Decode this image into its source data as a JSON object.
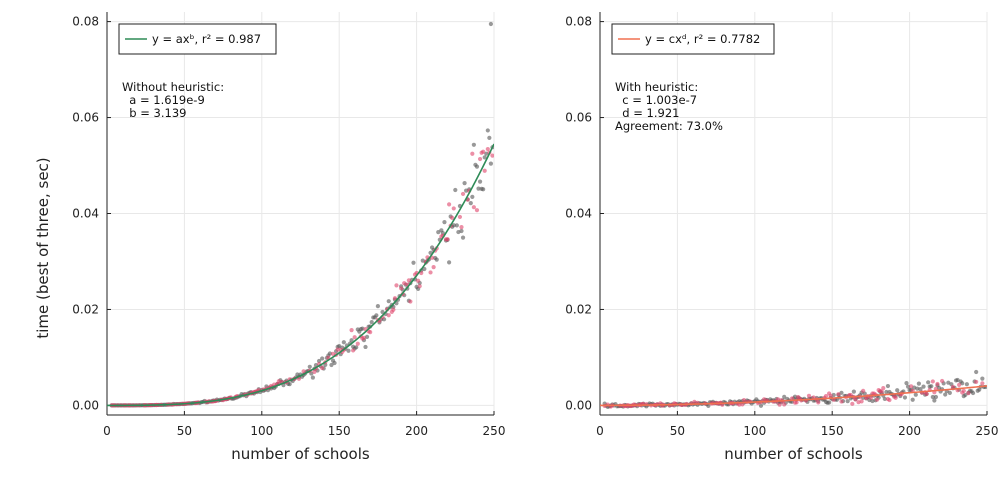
{
  "ylabel": "time (best of three, sec)",
  "chart_data": [
    {
      "type": "scatter",
      "xlabel": "number of schools",
      "xlim": [
        0,
        250
      ],
      "ylim": [
        -0.002,
        0.082
      ],
      "xticks": [
        "0",
        "50",
        "100",
        "150",
        "200",
        "250"
      ],
      "xtick_values": [
        0,
        50,
        100,
        150,
        200,
        250
      ],
      "yticks": [
        "0.00",
        "0.02",
        "0.04",
        "0.06",
        "0.08"
      ],
      "ytick_values": [
        0,
        0.02,
        0.04,
        0.06,
        0.08
      ],
      "grid": true,
      "legend": {
        "position": "top-left",
        "label": "y = axᵇ, r² = 0.987",
        "color": "#2e8b57"
      },
      "annotation": [
        "Without heuristic:",
        "  a = 1.619e-9",
        "  b = 3.139"
      ],
      "fit": {
        "form": "power",
        "coef": 1.619e-09,
        "exp": 3.139,
        "color": "#2e8b57"
      },
      "series": [
        {
          "color": "#555555",
          "noise": 0.09,
          "seed": 11,
          "points_per_x": 1
        },
        {
          "color": "#e0456a",
          "noise": 0.07,
          "seed": 23,
          "points_per_x": 0.55
        }
      ],
      "outliers": [
        [
          248,
          0.0795
        ]
      ]
    },
    {
      "type": "scatter",
      "xlabel": "number of schools",
      "xlim": [
        0,
        250
      ],
      "ylim": [
        -0.002,
        0.082
      ],
      "xticks": [
        "0",
        "50",
        "100",
        "150",
        "200",
        "250"
      ],
      "xtick_values": [
        0,
        50,
        100,
        150,
        200,
        250
      ],
      "yticks": [
        "0.00",
        "0.02",
        "0.04",
        "0.06",
        "0.08"
      ],
      "ytick_values": [
        0,
        0.02,
        0.04,
        0.06,
        0.08
      ],
      "grid": true,
      "legend": {
        "position": "top-left",
        "label": "y = cxᵈ, r² = 0.7782",
        "color": "#f07050"
      },
      "annotation": [
        "With heuristic:",
        "  c = 1.003e-7",
        "  d = 1.921",
        "Agreement: 73.0%"
      ],
      "fit": {
        "form": "power",
        "coef": 1.003e-07,
        "exp": 1.921,
        "color": "#f07050"
      },
      "series": [
        {
          "color": "#555555",
          "noise": 0.35,
          "seed": 37,
          "points_per_x": 1
        },
        {
          "color": "#e0456a",
          "noise": 0.35,
          "seed": 51,
          "points_per_x": 0.55
        }
      ],
      "outliers": []
    }
  ]
}
